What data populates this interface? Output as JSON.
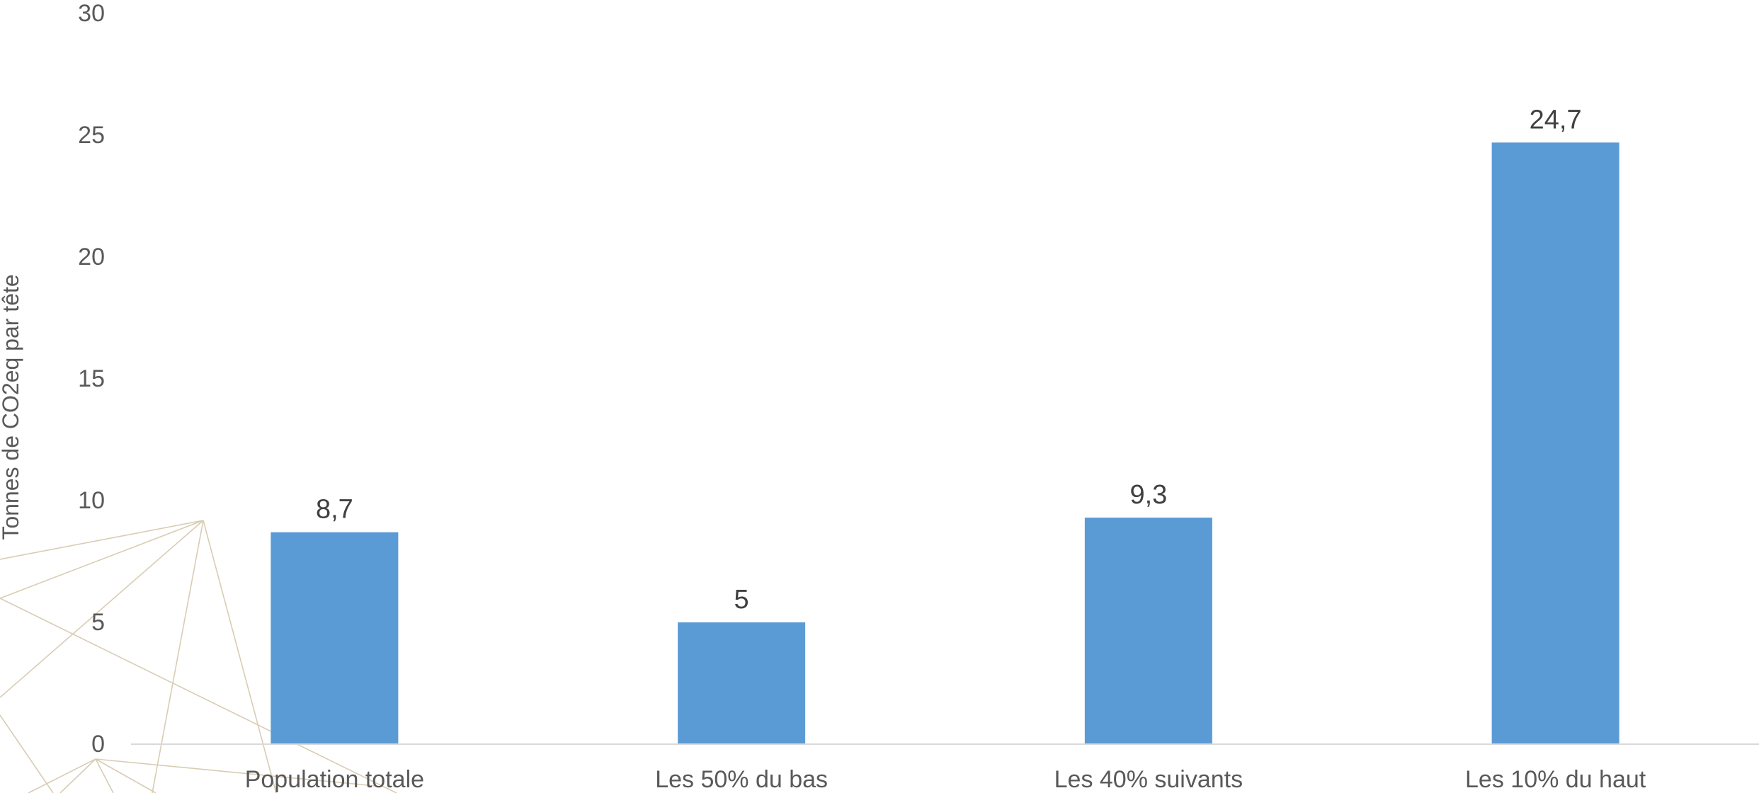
{
  "chart_data": {
    "type": "bar",
    "title": "",
    "xlabel": "",
    "ylabel": "Tonnes de CO2eq par tête",
    "ylim": [
      0,
      30
    ],
    "yticks": [
      "0",
      "5",
      "10",
      "15",
      "20",
      "25",
      "30"
    ],
    "grid": false,
    "legend": "none",
    "categories": [
      "Population totale",
      "Les 50% du bas",
      "Les 40% suivants",
      "Les 10% du haut"
    ],
    "values": [
      8.7,
      5,
      9.3,
      24.7
    ],
    "value_labels": [
      "8,7",
      "5",
      "9,3",
      "24,7"
    ],
    "colors": {
      "bar": "#5b9bd5",
      "axis_line": "#d9d9d9",
      "tick_text": "#595959",
      "data_label_text": "#404040",
      "decoration": "#d9ccb4"
    }
  }
}
